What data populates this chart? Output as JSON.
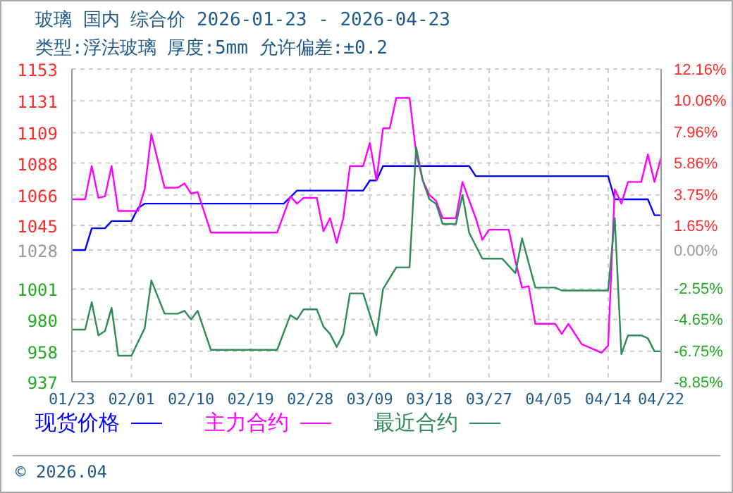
{
  "chart_data": {
    "type": "line",
    "title": "玻璃 国内 综合价 2026-01-23 - 2026-04-23",
    "subtitle": "类型:浮法玻璃 厚度:5mm 允许偏差:±0.2",
    "annotations": [
      "© 2026.04"
    ],
    "xlim": [
      "2026-01-23",
      "2026-04-22"
    ],
    "xticks": [
      {
        "value": "2026-01-23",
        "label": "01/23"
      },
      {
        "value": "2026-02-01",
        "label": "02/01"
      },
      {
        "value": "2026-02-10",
        "label": "02/10"
      },
      {
        "value": "2026-02-19",
        "label": "02/19"
      },
      {
        "value": "2026-02-28",
        "label": "02/28"
      },
      {
        "value": "2026-03-09",
        "label": "03/09"
      },
      {
        "value": "2026-03-18",
        "label": "03/18"
      },
      {
        "value": "2026-03-27",
        "label": "03/27"
      },
      {
        "value": "2026-04-05",
        "label": "04/05"
      },
      {
        "value": "2026-04-14",
        "label": "04/14"
      },
      {
        "value": "2026-04-22",
        "label": "04/22"
      }
    ],
    "ylim": [
      937,
      1153
    ],
    "yticks": [
      937,
      958,
      980,
      1001,
      1028,
      1045,
      1066,
      1088,
      1109,
      1131,
      1153
    ],
    "y2lim": [
      -8.85,
      12.16
    ],
    "y2ticks": [
      {
        "value": -8.85,
        "label": "-8.85%"
      },
      {
        "value": -6.75,
        "label": "-6.75%"
      },
      {
        "value": -4.65,
        "label": "-4.65%"
      },
      {
        "value": -2.55,
        "label": "-2.55%"
      },
      {
        "value": 0,
        "label": "0.00%"
      },
      {
        "value": 1.65,
        "label": "1.65%"
      },
      {
        "value": 3.75,
        "label": "3.75%"
      },
      {
        "value": 5.86,
        "label": "5.86%"
      },
      {
        "value": 7.96,
        "label": "7.96%"
      },
      {
        "value": 10.06,
        "label": "10.06%"
      },
      {
        "value": 12.16,
        "label": "12.16%"
      }
    ],
    "grid": true,
    "legend": "bottom",
    "marker": "none",
    "line_style": "solid",
    "series": [
      {
        "name": "现货价格",
        "color": "#0000ff",
        "x": [
          "2026-01-23",
          "2026-01-25",
          "2026-01-26",
          "2026-01-28",
          "2026-01-29",
          "2026-02-01",
          "2026-02-02",
          "2026-02-03",
          "2026-02-24",
          "2026-02-26",
          "2026-03-08",
          "2026-03-09",
          "2026-03-10",
          "2026-03-11",
          "2026-03-24",
          "2026-03-25",
          "2026-04-14",
          "2026-04-15",
          "2026-04-20",
          "2026-04-21",
          "2026-04-22"
        ],
        "values": [
          1028,
          1028,
          1043,
          1043,
          1048,
          1048,
          1057,
          1060,
          1060,
          1069,
          1069,
          1076,
          1076,
          1086,
          1086,
          1079,
          1079,
          1063,
          1063,
          1052,
          1052
        ]
      },
      {
        "name": "主力合约",
        "color": "#ff00ff",
        "x": [
          "2026-01-23",
          "2026-01-25",
          "2026-01-26",
          "2026-01-27",
          "2026-01-28",
          "2026-01-29",
          "2026-01-30",
          "2026-02-02",
          "2026-02-03",
          "2026-02-04",
          "2026-02-06",
          "2026-02-08",
          "2026-02-09",
          "2026-02-10",
          "2026-02-11",
          "2026-02-13",
          "2026-02-23",
          "2026-02-25",
          "2026-02-26",
          "2026-02-27",
          "2026-03-01",
          "2026-03-02",
          "2026-03-03",
          "2026-03-04",
          "2026-03-05",
          "2026-03-06",
          "2026-03-08",
          "2026-03-09",
          "2026-03-10",
          "2026-03-11",
          "2026-03-12",
          "2026-03-13",
          "2026-03-15",
          "2026-03-16",
          "2026-03-17",
          "2026-03-18",
          "2026-03-19",
          "2026-03-20",
          "2026-03-22",
          "2026-03-23",
          "2026-03-25",
          "2026-03-26",
          "2026-03-27",
          "2026-03-30",
          "2026-03-31",
          "2026-04-01",
          "2026-04-02",
          "2026-04-03",
          "2026-04-06",
          "2026-04-07",
          "2026-04-08",
          "2026-04-10",
          "2026-04-13",
          "2026-04-14",
          "2026-04-15",
          "2026-04-16",
          "2026-04-17",
          "2026-04-19",
          "2026-04-20",
          "2026-04-21",
          "2026-04-22"
        ],
        "values": [
          1063,
          1063,
          1086,
          1064,
          1065,
          1086,
          1055,
          1055,
          1070,
          1108,
          1071,
          1071,
          1074,
          1067,
          1068,
          1040,
          1040,
          1065,
          1060,
          1064,
          1064,
          1041,
          1050,
          1033,
          1050,
          1086,
          1086,
          1102,
          1076,
          1112,
          1112,
          1133,
          1133,
          1095,
          1076,
          1066,
          1062,
          1050,
          1050,
          1075,
          1050,
          1035,
          1042,
          1042,
          1020,
          1002,
          1003,
          977,
          977,
          970,
          977,
          963,
          957,
          962,
          1070,
          1060,
          1075,
          1075,
          1094,
          1075,
          1092
        ]
      },
      {
        "name": "最近合约",
        "color": "#2e8b57",
        "x": [
          "2026-01-23",
          "2026-01-25",
          "2026-01-26",
          "2026-01-27",
          "2026-01-28",
          "2026-01-29",
          "2026-01-30",
          "2026-02-01",
          "2026-02-03",
          "2026-02-04",
          "2026-02-06",
          "2026-02-08",
          "2026-02-09",
          "2026-02-10",
          "2026-02-11",
          "2026-02-13",
          "2026-02-23",
          "2026-02-25",
          "2026-02-26",
          "2026-02-27",
          "2026-03-01",
          "2026-03-02",
          "2026-03-03",
          "2026-03-04",
          "2026-03-05",
          "2026-03-06",
          "2026-03-08",
          "2026-03-10",
          "2026-03-11",
          "2026-03-13",
          "2026-03-15",
          "2026-03-16",
          "2026-03-17",
          "2026-03-18",
          "2026-03-19",
          "2026-03-20",
          "2026-03-22",
          "2026-03-23",
          "2026-03-24",
          "2026-03-26",
          "2026-03-29",
          "2026-03-31",
          "2026-04-01",
          "2026-04-03",
          "2026-04-06",
          "2026-04-07",
          "2026-04-14",
          "2026-04-15",
          "2026-04-16",
          "2026-04-17",
          "2026-04-19",
          "2026-04-20",
          "2026-04-21",
          "2026-04-22"
        ],
        "values": [
          973,
          973,
          992,
          969,
          972,
          988,
          955,
          955,
          974,
          1007,
          984,
          984,
          986,
          980,
          986,
          959,
          959,
          983,
          980,
          987,
          987,
          975,
          970,
          961,
          970,
          998,
          998,
          969,
          1001,
          1016,
          1016,
          1099,
          1076,
          1063,
          1060,
          1046,
          1046,
          1066,
          1040,
          1022,
          1022,
          1012,
          1036,
          1002,
          1002,
          1000,
          1000,
          1050,
          956,
          969,
          969,
          967,
          958,
          958
        ]
      }
    ]
  }
}
